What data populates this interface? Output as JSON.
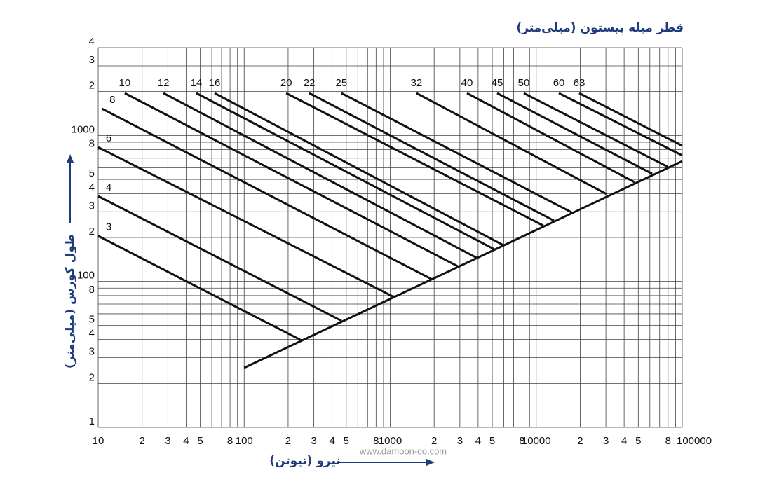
{
  "chart_data": {
    "type": "line",
    "title": "قطر میله پیستون (میلی‌متر)",
    "x_label": "نیرو (نیوتن)",
    "y_label": "طول کورس (میلی‌متر)",
    "watermark": "www.damoon-co.com",
    "xscale": "log",
    "yscale": "log",
    "xlim": [
      10,
      100000
    ],
    "ylim": [
      10,
      4000
    ],
    "xticks": [
      10,
      {
        "value": 20,
        "label": "2"
      },
      {
        "value": 30,
        "label": "3"
      },
      {
        "value": 40,
        "label": "4"
      },
      {
        "value": 50,
        "label": "5"
      },
      {
        "value": 80,
        "label": "8"
      },
      100,
      {
        "value": 200,
        "label": "2"
      },
      {
        "value": 300,
        "label": "3"
      },
      {
        "value": 400,
        "label": "4"
      },
      {
        "value": 500,
        "label": "5"
      },
      {
        "value": 800,
        "label": "8"
      },
      1000,
      {
        "value": 2000,
        "label": "2"
      },
      {
        "value": 3000,
        "label": "3"
      },
      {
        "value": 4000,
        "label": "4"
      },
      {
        "value": 5000,
        "label": "5"
      },
      {
        "value": 8000,
        "label": "8"
      },
      10000,
      {
        "value": 20000,
        "label": "2"
      },
      {
        "value": 30000,
        "label": "3"
      },
      {
        "value": 40000,
        "label": "4"
      },
      {
        "value": 50000,
        "label": "5"
      },
      {
        "value": 80000,
        "label": "8"
      },
      100000
    ],
    "yticks": [
      {
        "value": 10,
        "label": "1"
      },
      {
        "value": 20,
        "label": "2"
      },
      {
        "value": 30,
        "label": "3"
      },
      {
        "value": 40,
        "label": "4"
      },
      {
        "value": 50,
        "label": "5"
      },
      {
        "value": 80,
        "label": "8"
      },
      100,
      {
        "value": 200,
        "label": "2"
      },
      {
        "value": 300,
        "label": "3"
      },
      {
        "value": 400,
        "label": "4"
      },
      {
        "value": 500,
        "label": "5"
      },
      {
        "value": 800,
        "label": "8"
      },
      1000,
      {
        "value": 2000,
        "label": "2"
      },
      {
        "value": 3000,
        "label": "3"
      },
      {
        "value": 4000,
        "label": "4"
      }
    ],
    "x_minor_ticks": [
      60,
      70,
      90,
      600,
      700,
      900,
      6000,
      7000,
      9000,
      60000,
      70000,
      90000
    ],
    "y_minor_ticks": [
      60,
      70,
      90,
      600,
      700,
      900
    ],
    "grid": true,
    "color": "#111111",
    "series": [
      {
        "name": "3",
        "x": [
          10,
          247
        ],
        "values": [
          205,
          39.4
        ]
      },
      {
        "name": "4",
        "x": [
          10,
          464
        ],
        "values": [
          384,
          53.7
        ]
      },
      {
        "name": "6",
        "x": [
          10,
          1040
        ],
        "values": [
          832,
          79
        ]
      },
      {
        "name": "8",
        "x": [
          10.6,
          1910
        ],
        "values": [
          1528,
          104
        ]
      },
      {
        "name": "10",
        "x": [
          15.2,
          2904
        ],
        "values": [
          1950,
          127
        ]
      },
      {
        "name": "12",
        "x": [
          28,
          3918
        ],
        "values": [
          1950,
          145
        ]
      },
      {
        "name": "14",
        "x": [
          47,
          5164
        ],
        "values": [
          1950,
          166
        ]
      },
      {
        "name": "16",
        "x": [
          62.7,
          5970
        ],
        "values": [
          1950,
          177
        ]
      },
      {
        "name": "20",
        "x": [
          194,
          11190
        ],
        "values": [
          1950,
          241
        ]
      },
      {
        "name": "22",
        "x": [
          279,
          13210
        ],
        "values": [
          1950,
          261
        ]
      },
      {
        "name": "25",
        "x": [
          463,
          17420
        ],
        "values": [
          1950,
          298
        ]
      },
      {
        "name": "32",
        "x": [
          1513,
          30270
        ],
        "values": [
          1950,
          397
        ]
      },
      {
        "name": "40",
        "x": [
          3356,
          47120
        ],
        "values": [
          1950,
          479
        ]
      },
      {
        "name": "45",
        "x": [
          5400,
          62200
        ],
        "values": [
          1950,
          547
        ]
      },
      {
        "name": "50",
        "x": [
          8220,
          79300
        ],
        "values": [
          1950,
          611
        ]
      },
      {
        "name": "60",
        "x": [
          14290,
          100000
        ],
        "values": [
          1950,
          730
        ]
      },
      {
        "name": "63",
        "x": [
          19680,
          100000
        ],
        "values": [
          1950,
          851
        ]
      }
    ],
    "base_line": {
      "x": [
        100,
        100000
      ],
      "values": [
        25.6,
        667
      ]
    }
  }
}
